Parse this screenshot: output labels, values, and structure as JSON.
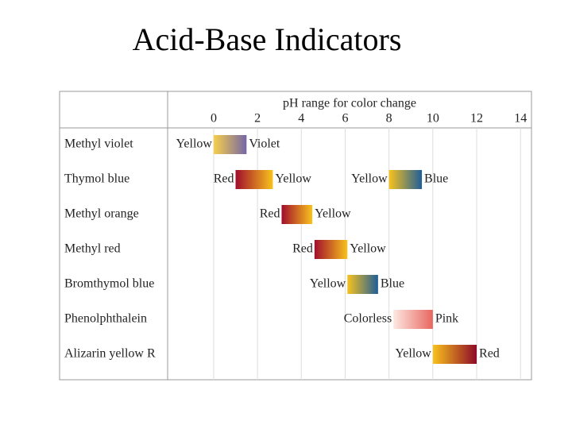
{
  "chart_data": {
    "type": "range",
    "title": "Acid-Base Indicators",
    "axis_label": "pH range for color change",
    "xlim": [
      -2.1,
      14.5
    ],
    "xticks": [
      0,
      2,
      4,
      6,
      8,
      10,
      12,
      14
    ],
    "grid": true,
    "rows": [
      {
        "name": "Methyl violet",
        "ranges": [
          {
            "low": 0.0,
            "high": 1.5,
            "from_label": "Yellow",
            "to_label": "Violet",
            "colors": [
              "#f7cf4a",
              "#7466a6"
            ]
          }
        ]
      },
      {
        "name": "Thymol blue",
        "ranges": [
          {
            "low": 1.0,
            "high": 2.7,
            "from_label": "Red",
            "to_label": "Yellow",
            "colors": [
              "#a10d2c",
              "#f8c21c"
            ]
          },
          {
            "low": 8.0,
            "high": 9.5,
            "from_label": "Yellow",
            "to_label": "Blue",
            "colors": [
              "#f8c21c",
              "#1e5e98"
            ]
          }
        ]
      },
      {
        "name": "Methyl orange",
        "ranges": [
          {
            "low": 3.1,
            "high": 4.5,
            "from_label": "Red",
            "to_label": "Yellow",
            "colors": [
              "#a10d2c",
              "#f8c21c"
            ]
          }
        ]
      },
      {
        "name": "Methyl red",
        "ranges": [
          {
            "low": 4.6,
            "high": 6.1,
            "from_label": "Red",
            "to_label": "Yellow",
            "colors": [
              "#a10d2c",
              "#f8c21c"
            ]
          }
        ]
      },
      {
        "name": "Bromthymol blue",
        "ranges": [
          {
            "low": 6.1,
            "high": 7.5,
            "from_label": "Yellow",
            "to_label": "Blue",
            "colors": [
              "#f8c21c",
              "#1e5e98"
            ]
          }
        ]
      },
      {
        "name": "Phenolphthalein",
        "ranges": [
          {
            "low": 8.2,
            "high": 10.0,
            "from_label": "Colorless",
            "to_label": "Pink",
            "colors": [
              "#fde8e2",
              "#e8665f"
            ]
          }
        ]
      },
      {
        "name": "Alizarin yellow R",
        "ranges": [
          {
            "low": 10.0,
            "high": 12.0,
            "from_label": "Yellow",
            "to_label": "Red",
            "colors": [
              "#f8c21c",
              "#8e0a28"
            ]
          }
        ]
      }
    ]
  }
}
